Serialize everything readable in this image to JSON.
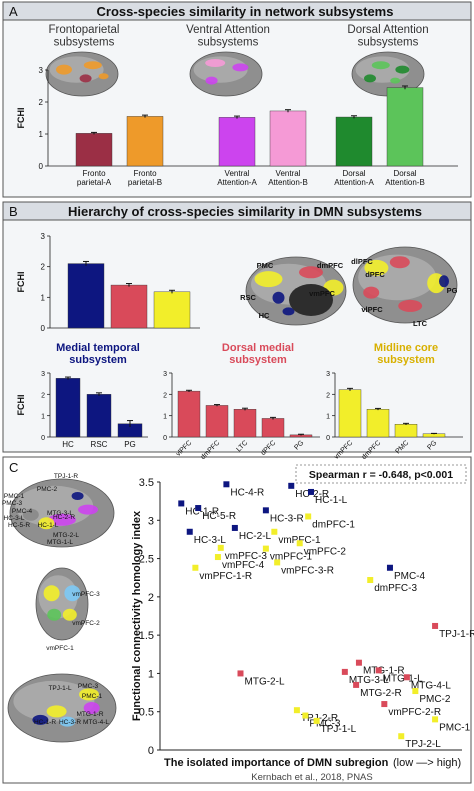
{
  "colors": {
    "panel_bg": "#f4f6f8",
    "panel_header": "#d9dde3",
    "border": "#555555",
    "navy": "#0d1680",
    "red": "#d94a5a",
    "yellow": "#f2ee2a",
    "maroon": "#9b2f45",
    "orange": "#ee9a2a",
    "purple": "#cc44ee",
    "pink": "#f59ad6",
    "dkgreen": "#1f8a2e",
    "ltgreen": "#5cc45a"
  },
  "panel_a": {
    "letter": "A",
    "title": "Cross-species similarity in network subsystems",
    "group_titles": [
      "Frontoparietal\nsubsystems",
      "Ventral Attention\nsubsystems",
      "Dorsal Attention\nsubsystems"
    ]
  },
  "panel_b": {
    "letter": "B",
    "title": "Hierarchy of cross-species similarity in DMN subsystems",
    "sub_titles": [
      "Medial temporal\nsubsystem",
      "Dorsal medial\nsubsystem",
      "Midline core\nsubsystem"
    ],
    "brain_labels": [
      "PMC",
      "dmPFC",
      "RSC",
      "vmPFC",
      "HC",
      "dlPFC",
      "dPFC",
      "PG",
      "vlPFC",
      "LTC"
    ]
  },
  "panel_c": {
    "letter": "C",
    "brain_labels": [
      "TPJ-1-R",
      "PMC-1",
      "PMC-2",
      "PMC-3",
      "PMC-4",
      "HC-2-R",
      "HC-3-L",
      "HC-5-R",
      "HC-1-L",
      "MTG-3-L",
      "MTG-2-L",
      "MTG-1-L",
      "vmPFC-3",
      "vmPFC-2",
      "vmPFC-1",
      "PMC-3",
      "PMC-1",
      "TPJ-1-L",
      "HC-1-R",
      "HC-3-R",
      "MTG-1-R",
      "MTG-4-L"
    ]
  },
  "chart_data": [
    {
      "type": "bar",
      "title": "Cross-species similarity in network subsystems",
      "ylabel": "FCHI",
      "ylim": [
        0,
        3
      ],
      "yticks": [
        0,
        1,
        2,
        3
      ],
      "groups": [
        "Frontoparietal subsystems",
        "Ventral Attention subsystems",
        "Dorsal Attention subsystems"
      ],
      "categories": [
        "Fronto parietal-A",
        "Fronto parietal-B",
        "Ventral Attention-A",
        "Ventral Attention-B",
        "Dorsal Attention-A",
        "Dorsal Attention-B"
      ],
      "values": [
        1.02,
        1.55,
        1.52,
        1.72,
        1.53,
        2.45
      ],
      "errors": [
        0.03,
        0.04,
        0.04,
        0.04,
        0.04,
        0.05
      ]
    },
    {
      "type": "bar",
      "title": "Hierarchy of cross-species similarity in DMN subsystems",
      "ylabel": "FCHI",
      "ylim": [
        0,
        3
      ],
      "yticks": [
        0,
        1,
        2,
        3
      ],
      "categories": [
        "Medial temporal",
        "Dorsal medial",
        "Midline core"
      ],
      "values": [
        2.1,
        1.4,
        1.18
      ],
      "errors": [
        0.07,
        0.05,
        0.05
      ]
    },
    {
      "type": "bar",
      "title": "Medial temporal subsystem",
      "ylabel": "FCHI",
      "ylim": [
        0,
        3
      ],
      "yticks": [
        0,
        1,
        2,
        3
      ],
      "categories": [
        "HC",
        "RSC",
        "PG"
      ],
      "values": [
        2.75,
        2.0,
        0.62
      ],
      "errors": [
        0.06,
        0.07,
        0.15
      ]
    },
    {
      "type": "bar",
      "title": "Dorsal medial subsystem",
      "ylim": [
        0,
        3
      ],
      "yticks": [
        0,
        1,
        2,
        3
      ],
      "categories": [
        "vlPFC",
        "dmPFC",
        "LTC",
        "dPFC",
        "PG"
      ],
      "values": [
        2.15,
        1.48,
        1.3,
        0.87,
        0.1
      ],
      "errors": [
        0.04,
        0.04,
        0.05,
        0.05,
        0.03
      ]
    },
    {
      "type": "bar",
      "title": "Midline core subsystem",
      "ylim": [
        0,
        3
      ],
      "yticks": [
        0,
        1,
        2,
        3
      ],
      "categories": [
        "vmPFC",
        "dmPFC",
        "PMC",
        "PG"
      ],
      "values": [
        2.22,
        1.3,
        0.6,
        0.15
      ],
      "errors": [
        0.06,
        0.04,
        0.04,
        0.02
      ]
    },
    {
      "type": "scatter",
      "annotation": "Spearman r = -0.648, p<0.001",
      "xlabel": "The isolated importance of DMN subregion",
      "xlabel_suffix": "(low —> high)",
      "ylabel": "Functional connectivity homology index",
      "ylim": [
        0,
        3.5
      ],
      "yticks": [
        0,
        0.5,
        1,
        1.5,
        2,
        2.5,
        3,
        3.5
      ],
      "source": "Kernbach et al., 2018, PNAS",
      "points": [
        {
          "label": "HC-4-R",
          "x": 0.2,
          "y": 3.47,
          "color": "navy"
        },
        {
          "label": "HC-2-R",
          "x": 0.43,
          "y": 3.45,
          "color": "navy"
        },
        {
          "label": "HC-1-L",
          "x": 0.5,
          "y": 3.37,
          "color": "navy"
        },
        {
          "label": "HC-1-R",
          "x": 0.04,
          "y": 3.22,
          "color": "navy"
        },
        {
          "label": "HC-5-R",
          "x": 0.1,
          "y": 3.16,
          "color": "navy"
        },
        {
          "label": "HC-3-R",
          "x": 0.34,
          "y": 3.13,
          "color": "navy"
        },
        {
          "label": "HC-3-L",
          "x": 0.07,
          "y": 2.85,
          "color": "navy"
        },
        {
          "label": "HC-2-L",
          "x": 0.23,
          "y": 2.9,
          "color": "navy"
        },
        {
          "label": "PMC-4",
          "x": 0.78,
          "y": 2.38,
          "color": "navy"
        },
        {
          "label": "vmPFC-1",
          "x": 0.37,
          "y": 2.85,
          "color": "yellow"
        },
        {
          "label": "vmPFC-2",
          "x": 0.46,
          "y": 2.7,
          "color": "yellow"
        },
        {
          "label": "vmPFC-3",
          "x": 0.18,
          "y": 2.64,
          "color": "yellow"
        },
        {
          "label": "vmPFC-1",
          "x": 0.34,
          "y": 2.63,
          "color": "yellow"
        },
        {
          "label": "vmPFC-4",
          "x": 0.17,
          "y": 2.52,
          "color": "yellow"
        },
        {
          "label": "vmPFC-3-R",
          "x": 0.38,
          "y": 2.45,
          "color": "yellow"
        },
        {
          "label": "vmPFC-1-R",
          "x": 0.09,
          "y": 2.38,
          "color": "yellow"
        },
        {
          "label": "dmPFC-3",
          "x": 0.71,
          "y": 2.22,
          "color": "yellow"
        },
        {
          "label": "TPJ-1-R",
          "x": 0.94,
          "y": 1.62,
          "color": "red"
        },
        {
          "label": "MTG-1-R",
          "x": 0.67,
          "y": 1.14,
          "color": "red"
        },
        {
          "label": "MTG-3-L",
          "x": 0.62,
          "y": 1.02,
          "color": "red"
        },
        {
          "label": "MTG-1-L",
          "x": 0.74,
          "y": 1.04,
          "color": "red"
        },
        {
          "label": "MTG-2-L",
          "x": 0.25,
          "y": 1.0,
          "color": "red"
        },
        {
          "label": "MTG-2-R",
          "x": 0.66,
          "y": 0.85,
          "color": "red"
        },
        {
          "label": "MTG-4-L",
          "x": 0.84,
          "y": 0.95,
          "color": "red"
        },
        {
          "label": "vmPFC-2-R",
          "x": 0.76,
          "y": 0.6,
          "color": "red"
        },
        {
          "label": "PMC-1",
          "x": 0.94,
          "y": 0.4,
          "color": "yellow"
        },
        {
          "label": "PMC-2",
          "x": 0.87,
          "y": 0.77,
          "color": "yellow"
        },
        {
          "label": "TPJ-2-R",
          "x": 0.45,
          "y": 0.52,
          "color": "yellow"
        },
        {
          "label": "PMC-3",
          "x": 0.48,
          "y": 0.45,
          "color": "yellow"
        },
        {
          "label": "TPJ-1-L",
          "x": 0.52,
          "y": 0.38,
          "color": "yellow"
        },
        {
          "label": "TPJ-2-L",
          "x": 0.82,
          "y": 0.18,
          "color": "yellow"
        },
        {
          "label": "dmPFC-1",
          "x": 0.49,
          "y": 3.05,
          "color": "yellow"
        }
      ]
    }
  ]
}
